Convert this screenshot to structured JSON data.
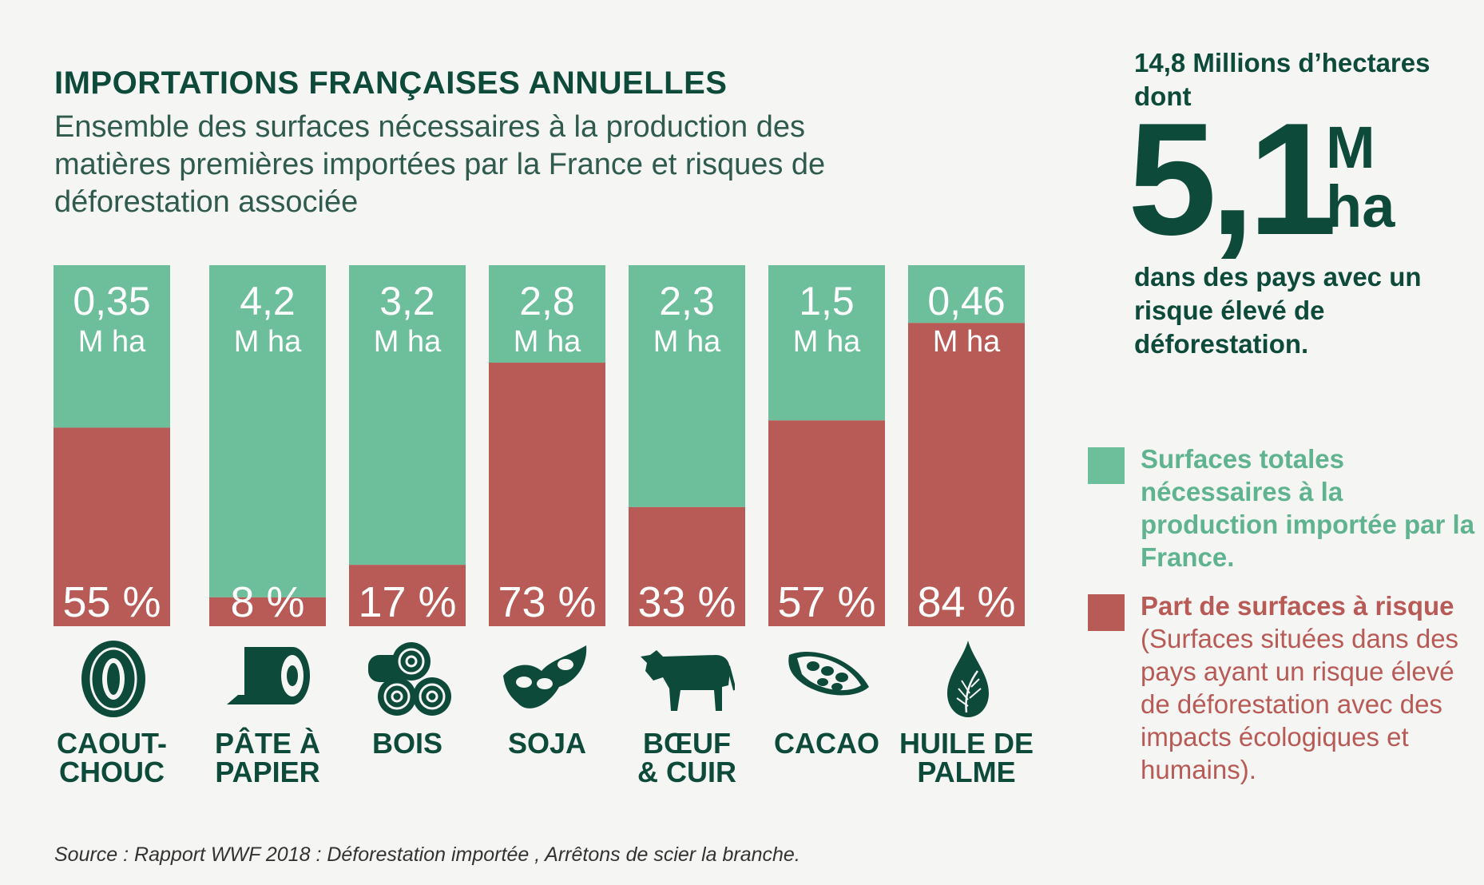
{
  "title": "IMPORTATIONS FRANÇAISES ANNUELLES",
  "subtitle": "Ensemble des surfaces nécessaires à la production des matières premières importées par la France et risques de déforestation associée",
  "colors": {
    "total": "#6dbf9b",
    "risk": "#b85a55",
    "dark": "#0e4a3a"
  },
  "chart_data": {
    "type": "bar",
    "stacked_percent": true,
    "categories": [
      "CAOUT-CHOUC",
      "PÂTE À PAPIER",
      "BOIS",
      "SOJA",
      "BŒUF & CUIR",
      "CACAO",
      "HUILE DE PALME"
    ],
    "category_lines": [
      [
        "CAOUT-",
        "CHOUC"
      ],
      [
        "PÂTE À",
        "PAPIER"
      ],
      [
        "BOIS"
      ],
      [
        "SOJA"
      ],
      [
        "BŒUF",
        "& CUIR"
      ],
      [
        "CACAO"
      ],
      [
        "HUILE DE",
        "PALME"
      ]
    ],
    "icons": [
      "tire-icon",
      "paper-roll-icon",
      "logs-icon",
      "soybean-icon",
      "cow-icon",
      "cacao-pod-icon",
      "oil-drop-icon"
    ],
    "total_labels": [
      "0,35",
      "4,2",
      "3,2",
      "2,8",
      "2,3",
      "1,5",
      "0,46"
    ],
    "total_values_mha": [
      0.35,
      4.2,
      3.2,
      2.8,
      2.3,
      1.5,
      0.46
    ],
    "unit_label": "M ha",
    "risk_percent": [
      55,
      8,
      17,
      73,
      33,
      57,
      84
    ],
    "risk_labels": [
      "55 %",
      "8 %",
      "17 %",
      "73 %",
      "33 %",
      "57 %",
      "84 %"
    ],
    "series": [
      {
        "name": "Surfaces totales nécessaires à la production importée par la France.",
        "color": "#6dbf9b"
      },
      {
        "name": "Part de surfaces à risque",
        "color": "#b85a55"
      }
    ]
  },
  "side": {
    "intro": "14,8 Millions d’hectares dont",
    "big_number": "5,1",
    "big_unit_m": "M",
    "big_unit_ha": "ha",
    "outro": "dans des pays avec un risque élevé de déforestation."
  },
  "legend": {
    "total_text": "Surfaces totales nécessaires à la production importée par la France.",
    "risk_bold": "Part de surfaces à risque",
    "risk_rest": " (Surfaces situées dans des pays ayant un risque élevé de déforestation avec des impacts écologiques et humains)."
  },
  "source": "Source : Rapport WWF 2018 : Déforestation importée , Arrêtons de scier la branche."
}
